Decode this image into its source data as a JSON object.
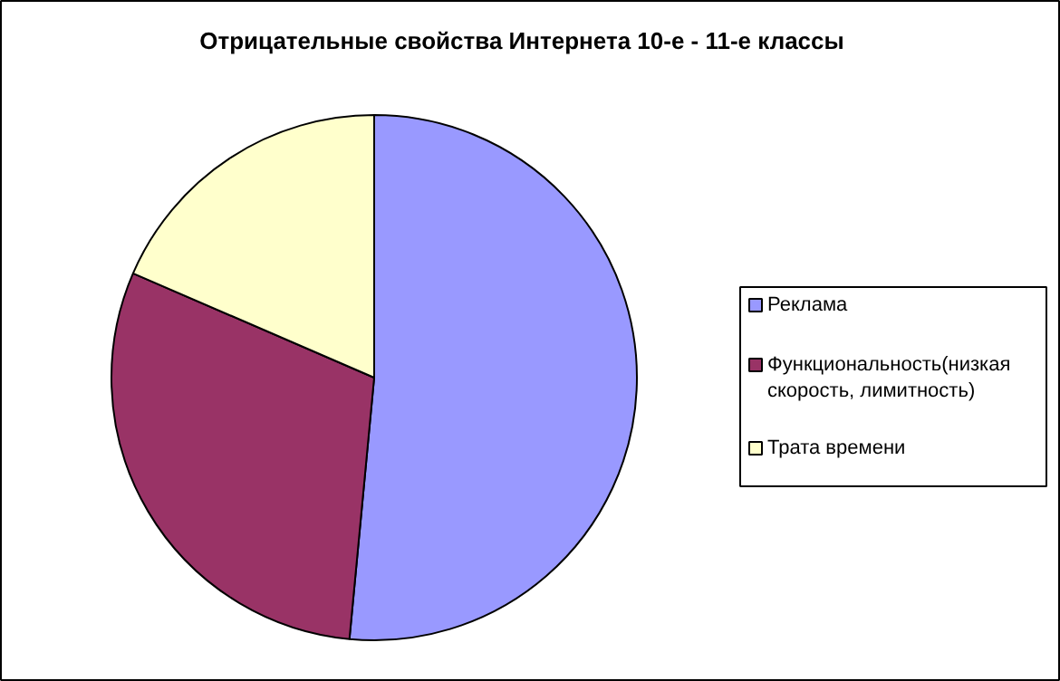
{
  "chart_data": {
    "type": "pie",
    "title": "Отрицательные свойства Интернета 10-е - 11-е классы",
    "categories": [
      "Реклама",
      "Функциональность(низкая скорость, лимитность)",
      "Трата времени"
    ],
    "values": [
      51.5,
      30,
      18.5
    ],
    "colors": [
      "#9999ff",
      "#993366",
      "#ffffcc"
    ],
    "legend": "right"
  }
}
